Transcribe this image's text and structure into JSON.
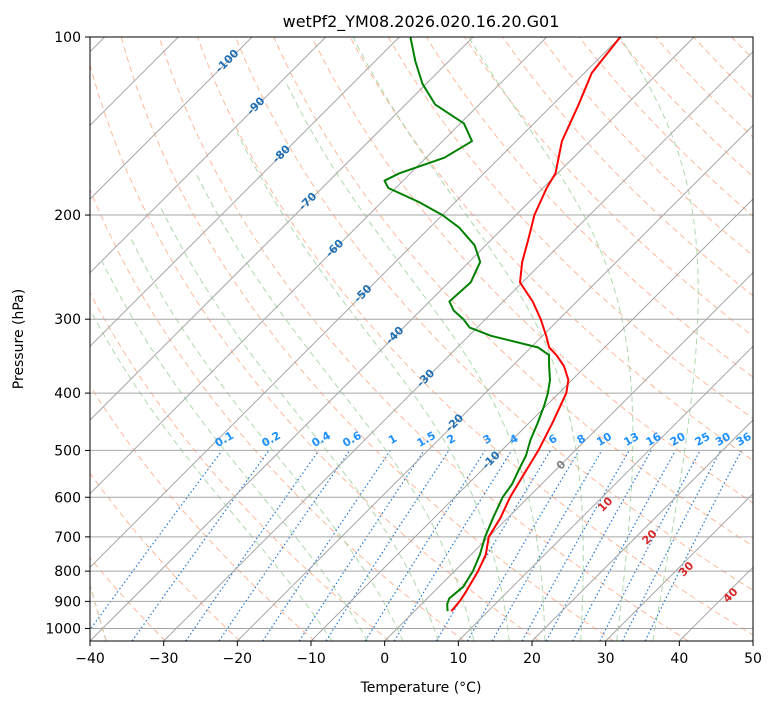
{
  "chart_data": {
    "type": "line",
    "title": "wetPf2_YM08.2026.020.16.20.G01",
    "xlabel": "Temperature (°C)",
    "ylabel": "Pressure (hPa)",
    "xlim": [
      -40,
      50
    ],
    "ylim": [
      1050,
      100
    ],
    "y_scale": "log",
    "skew": "skew-T",
    "grid": true,
    "x_ticks": [
      "−40",
      "−30",
      "−20",
      "−10",
      "0",
      "10",
      "20",
      "30",
      "40",
      "50"
    ],
    "y_ticks": [
      "100",
      "200",
      "300",
      "400",
      "500",
      "600",
      "700",
      "800",
      "900",
      "1000"
    ],
    "colors": {
      "temperature": "#ff0000",
      "dewpoint": "#008000",
      "isotherm": "#a6a6a6",
      "dry_adiabat": "#ffa07a",
      "moist_adiabat": "#98d098",
      "mixing_ratio": "#1f77d4",
      "isotherm_label": "#1f6fb4",
      "mixing_ratio_label": "#1e90ff",
      "wetbulb_label_zero": "#808080",
      "wetbulb_label": "#d62728"
    },
    "isotherm_labels": [
      "-100",
      "-90",
      "-80",
      "-70",
      "-60",
      "-50",
      "-40",
      "-30",
      "-20",
      "-10"
    ],
    "mixing_ratio_labels": [
      "0.1",
      "0.2",
      "0.4",
      "0.6",
      "1",
      "1.5",
      "2",
      "3",
      "4",
      "6",
      "8",
      "10",
      "13",
      "16",
      "20",
      "25",
      "30",
      "36"
    ],
    "wetbulb_labels": [
      "0",
      "10",
      "20",
      "30",
      "40"
    ],
    "series": [
      {
        "name": "",
        "role": "temperature",
        "p": [
          935,
          900,
          870,
          800,
          750,
          700,
          650,
          600,
          550,
          500,
          450,
          400,
          380,
          360,
          345,
          335,
          320,
          300,
          280,
          260,
          240,
          220,
          200,
          180,
          170,
          150,
          130,
          115,
          100
        ],
        "t": [
          5.0,
          4.8,
          4.4,
          3.2,
          2.0,
          0.0,
          -1.0,
          -2.5,
          -3.7,
          -5.0,
          -6.8,
          -9.0,
          -10.5,
          -13.0,
          -15.5,
          -17.5,
          -19.5,
          -22.5,
          -26.0,
          -30.3,
          -32.8,
          -35.0,
          -37.5,
          -39.5,
          -40.3,
          -43.8,
          -46.5,
          -49.0,
          -50.0
        ]
      },
      {
        "name": "",
        "role": "dewpoint",
        "p": [
          935,
          910,
          890,
          850,
          800,
          750,
          700,
          650,
          600,
          570,
          540,
          510,
          480,
          450,
          420,
          400,
          380,
          360,
          345,
          335,
          320,
          310,
          300,
          290,
          280,
          260,
          240,
          225,
          210,
          200,
          190,
          180,
          175,
          170,
          160,
          150,
          140,
          130,
          120,
          110,
          100
        ],
        "t": [
          4.5,
          3.5,
          3.0,
          3.3,
          2.5,
          1.2,
          -0.5,
          -2.0,
          -3.5,
          -4.0,
          -5.0,
          -6.0,
          -7.5,
          -8.8,
          -10.3,
          -11.5,
          -13.0,
          -15.0,
          -16.5,
          -19.0,
          -27.0,
          -31.0,
          -33.0,
          -35.5,
          -37.3,
          -37.0,
          -38.5,
          -41.5,
          -46.0,
          -50.0,
          -55.0,
          -61.0,
          -62.5,
          -61.5,
          -57.5,
          -56.0,
          -59.5,
          -66.0,
          -70.5,
          -74.5,
          -78.5
        ]
      }
    ]
  }
}
